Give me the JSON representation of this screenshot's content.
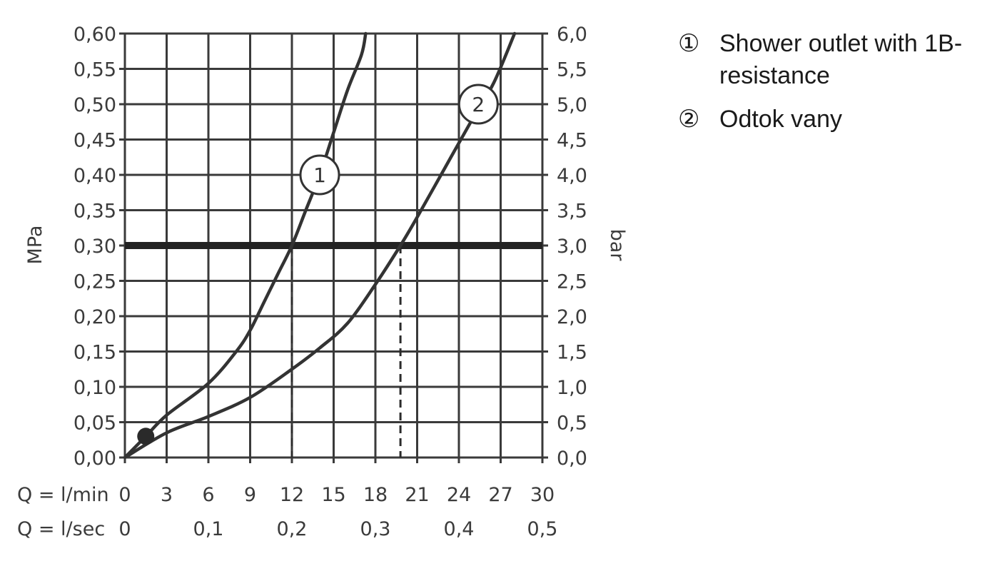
{
  "chart_data": {
    "type": "line",
    "title": "",
    "y_left": {
      "label": "MPa",
      "lim": [
        0,
        0.6
      ],
      "ticks": [
        "0,00",
        "0,05",
        "0,10",
        "0,15",
        "0,20",
        "0,25",
        "0,30",
        "0,35",
        "0,40",
        "0,45",
        "0,50",
        "0,55",
        "0,60"
      ]
    },
    "y_right": {
      "label": "bar",
      "lim": [
        0,
        6
      ],
      "ticks": [
        "0,0",
        "0,5",
        "1,0",
        "1,5",
        "2,0",
        "2,5",
        "3,0",
        "3,5",
        "4,0",
        "4,5",
        "5,0",
        "5,5",
        "6,0"
      ]
    },
    "x_lmin": {
      "label": "Q = l/min",
      "lim": [
        0,
        30
      ],
      "ticks": [
        "0",
        "3",
        "6",
        "9",
        "12",
        "15",
        "18",
        "21",
        "24",
        "27",
        "30"
      ]
    },
    "x_lsec": {
      "label": "Q = l/sec",
      "ticks": [
        {
          "value": 0,
          "label": "0"
        },
        {
          "value": 6,
          "label": "0,1"
        },
        {
          "value": 12,
          "label": "0,2"
        },
        {
          "value": 18,
          "label": "0,3"
        },
        {
          "value": 24,
          "label": "0,4"
        },
        {
          "value": 30,
          "label": "0,5"
        }
      ]
    },
    "grid": true,
    "reference_line": {
      "y": 0.3
    },
    "reference_drops": [
      12,
      19.8
    ],
    "start_point": {
      "x": 1.5,
      "y": 0.03
    },
    "series": [
      {
        "marker": "1",
        "marker_at": {
          "x": 14,
          "y": 0.4
        },
        "points": [
          [
            0,
            0
          ],
          [
            1.5,
            0.03
          ],
          [
            3,
            0.06
          ],
          [
            6,
            0.105
          ],
          [
            8,
            0.15
          ],
          [
            9,
            0.18
          ],
          [
            10,
            0.22
          ],
          [
            11,
            0.26
          ],
          [
            12,
            0.3
          ],
          [
            13,
            0.35
          ],
          [
            14,
            0.4
          ],
          [
            15,
            0.46
          ],
          [
            16,
            0.52
          ],
          [
            17,
            0.57
          ],
          [
            17.3,
            0.6
          ]
        ]
      },
      {
        "marker": "2",
        "marker_at": {
          "x": 25.4,
          "y": 0.5
        },
        "points": [
          [
            0,
            0
          ],
          [
            3,
            0.035
          ],
          [
            6,
            0.058
          ],
          [
            9,
            0.085
          ],
          [
            12,
            0.125
          ],
          [
            14,
            0.155
          ],
          [
            16,
            0.19
          ],
          [
            18,
            0.245
          ],
          [
            19.8,
            0.3
          ],
          [
            21,
            0.34
          ],
          [
            23,
            0.41
          ],
          [
            25,
            0.48
          ],
          [
            26.5,
            0.53
          ],
          [
            28,
            0.6
          ]
        ]
      }
    ]
  },
  "legend": {
    "items": [
      {
        "symbol": "①",
        "lines": [
          "Shower outlet with 1B-",
          "resistance"
        ]
      },
      {
        "symbol": "②",
        "lines": [
          "Odtok vany"
        ]
      }
    ]
  }
}
